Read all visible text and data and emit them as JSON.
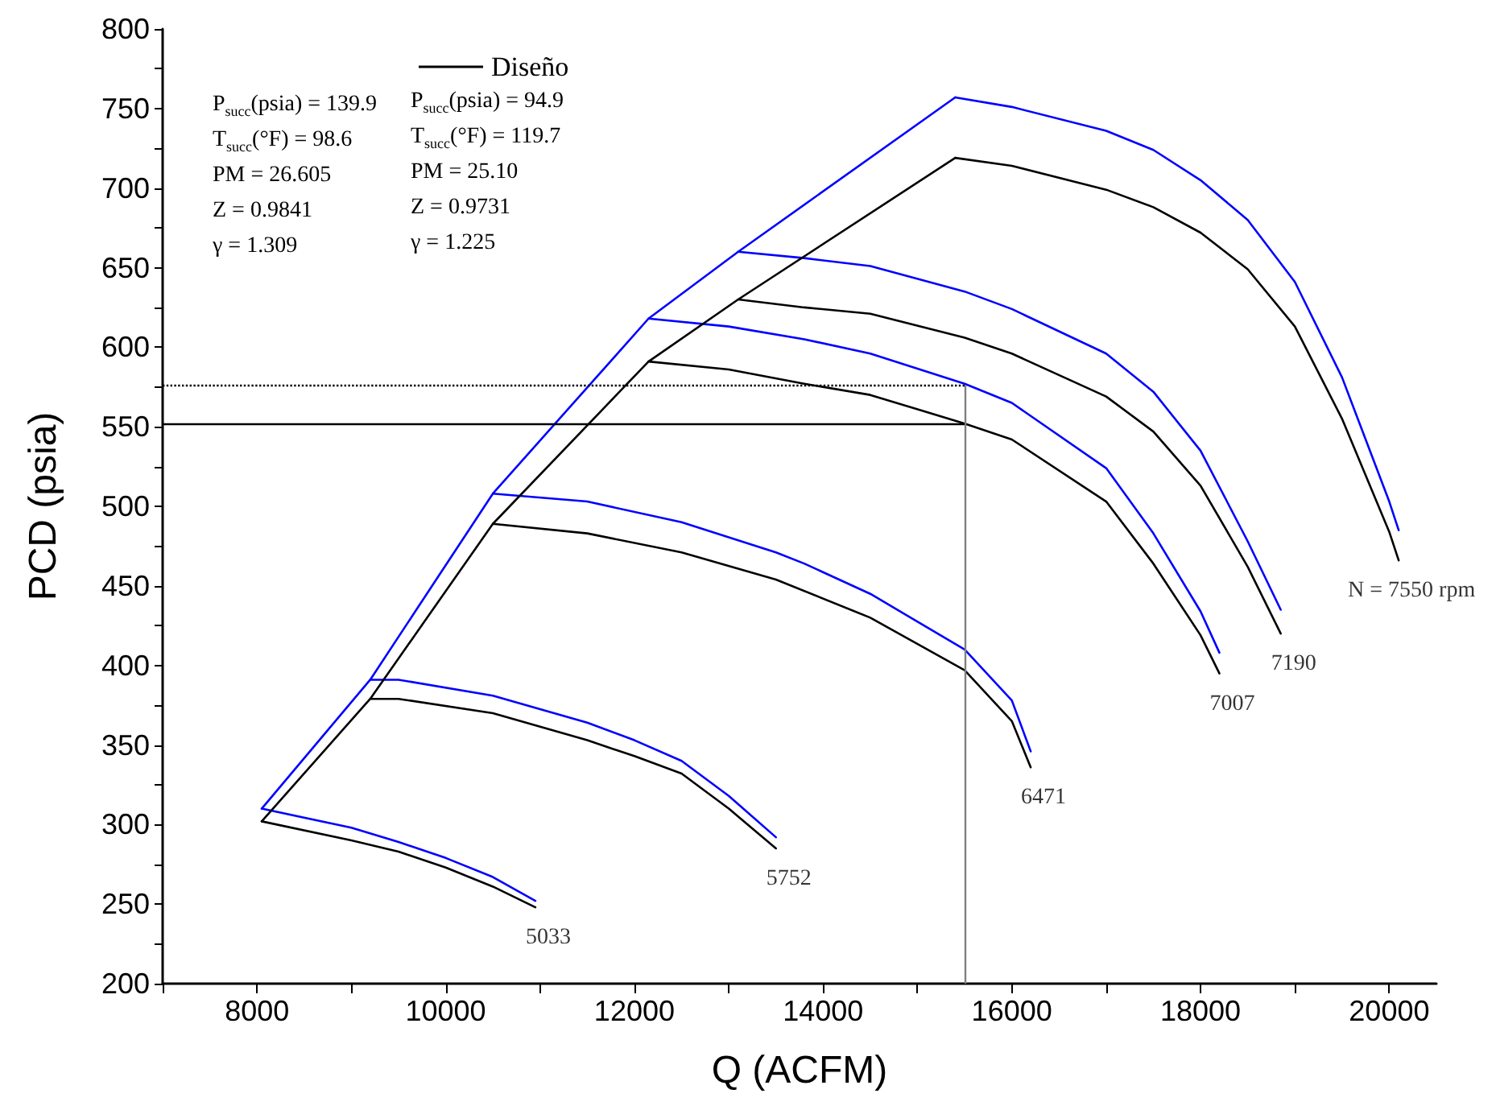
{
  "chart_data": {
    "type": "line",
    "xlabel": "Q (ACFM)",
    "ylabel": "PCD (psia)",
    "xlim": [
      7000,
      20500
    ],
    "xticks": [
      {
        "value": 7000,
        "label": null
      },
      8000,
      {
        "value": 9000,
        "label": null
      },
      10000,
      {
        "value": 11000,
        "label": null
      },
      12000,
      {
        "value": 13000,
        "label": null
      },
      14000,
      {
        "value": 15000,
        "label": null
      },
      16000,
      {
        "value": 17000,
        "label": null
      },
      18000,
      {
        "value": 19000,
        "label": null
      },
      20000
    ],
    "ylim": [
      200,
      800
    ],
    "yticks": [
      200,
      {
        "value": 225,
        "label": null
      },
      250,
      {
        "value": 275,
        "label": null
      },
      300,
      {
        "value": 325,
        "label": null
      },
      350,
      {
        "value": 375,
        "label": null
      },
      400,
      {
        "value": 425,
        "label": null
      },
      450,
      {
        "value": 475,
        "label": null
      },
      500,
      {
        "value": 525,
        "label": null
      },
      550,
      {
        "value": 575,
        "label": null
      },
      600,
      {
        "value": 625,
        "label": null
      },
      650,
      {
        "value": 675,
        "label": null
      },
      700,
      {
        "value": 725,
        "label": null
      },
      750,
      {
        "value": 775,
        "label": null
      },
      800
    ],
    "grid": false,
    "legend": "top left",
    "marker": "none",
    "line_style": "solid",
    "series": [
      {
        "color": "#0000ff",
        "x": [
          8050,
          9000,
          9500,
          10000,
          10500,
          10950
        ],
        "values": [
          310,
          298,
          289,
          279,
          267,
          252
        ]
      },
      {
        "color": "#0000ff",
        "x": [
          9200,
          9500,
          10500,
          11500,
          12000,
          12500,
          13000,
          13500
        ],
        "values": [
          391,
          391,
          381,
          364,
          353,
          340,
          318,
          292
        ]
      },
      {
        "color": "#0000ff",
        "x": [
          10500,
          11500,
          12500,
          13500,
          13800,
          14500,
          15500,
          16000,
          16200
        ],
        "values": [
          508,
          503,
          490,
          471,
          464,
          445,
          410,
          378,
          346
        ]
      },
      {
        "color": "#0000ff",
        "x": [
          12150,
          13000,
          13800,
          14500,
          15500,
          16000,
          17000,
          17500,
          18000,
          18200
        ],
        "values": [
          618,
          613,
          605,
          596,
          577,
          565,
          524,
          483,
          434,
          408
        ]
      },
      {
        "color": "#0000ff",
        "x": [
          13100,
          13800,
          14500,
          15500,
          16000,
          17000,
          17500,
          18000,
          18500,
          18850
        ],
        "values": [
          660,
          656,
          651,
          635,
          624,
          596,
          572,
          535,
          478,
          435
        ]
      },
      {
        "color": "#0000ff",
        "x": [
          15400,
          16000,
          17000,
          17500,
          18000,
          18500,
          19000,
          19500,
          20000,
          20100
        ],
        "values": [
          757,
          751,
          736,
          724,
          705,
          680,
          641,
          581,
          503,
          485
        ]
      },
      {
        "color": "#0000ff",
        "x": [
          8050,
          9200,
          10500,
          12150,
          13100,
          15400
        ],
        "values": [
          310,
          391,
          508,
          618,
          660,
          757
        ]
      },
      {
        "name": "Diseño",
        "color": "#000000",
        "x": [
          8050,
          9000,
          9500,
          10000,
          10500,
          10950
        ],
        "values": [
          302,
          290,
          283,
          273,
          261,
          248
        ]
      },
      {
        "color": "#000000",
        "x": [
          9200,
          9500,
          10500,
          11500,
          12000,
          12500,
          13000,
          13500
        ],
        "values": [
          379,
          379,
          370,
          353,
          343,
          332,
          310,
          285
        ]
      },
      {
        "color": "#000000",
        "x": [
          10500,
          11500,
          12500,
          13500,
          14500,
          15500,
          16000,
          16200
        ],
        "values": [
          489,
          483,
          471,
          454,
          430,
          397,
          365,
          336
        ]
      },
      {
        "color": "#000000",
        "x": [
          12150,
          13000,
          13800,
          14500,
          15500,
          16000,
          17000,
          17500,
          18000,
          18200
        ],
        "values": [
          591,
          586,
          577,
          570,
          552,
          542,
          503,
          464,
          419,
          395
        ]
      },
      {
        "color": "#000000",
        "x": [
          13100,
          13800,
          14500,
          15500,
          16000,
          17000,
          17500,
          18000,
          18500,
          18850
        ],
        "values": [
          630,
          625,
          621,
          606,
          596,
          569,
          547,
          513,
          462,
          420
        ]
      },
      {
        "color": "#000000",
        "x": [
          15400,
          16000,
          17000,
          17500,
          18000,
          18500,
          19000,
          19500,
          20000,
          20100
        ],
        "values": [
          719,
          714,
          699,
          688,
          672,
          649,
          613,
          555,
          484,
          466
        ]
      },
      {
        "color": "#000000",
        "x": [
          8050,
          9200,
          10500,
          12150,
          13100,
          15400
        ],
        "values": [
          302,
          379,
          489,
          591,
          630,
          719
        ]
      }
    ],
    "ref_lines": [
      {
        "axis": "x",
        "value": 15500,
        "color": "#808080",
        "line_style": "solid"
      },
      {
        "axis": "y",
        "value": 552,
        "color": "#000000",
        "line_style": "solid"
      },
      {
        "axis": "y",
        "value": 576,
        "color": "#000000",
        "line_style": "dotted"
      }
    ],
    "annotations": [
      "P$_{succ}$(psia) = 139.9",
      "T$_{succ}$(°F) = 98.6",
      "PM = 26.605",
      "Z = 0.9841",
      "γ = 1.309",
      "P$_{succ}$(psia) = 94.9",
      "T$_{succ}$(°F) = 119.7",
      "PM = 25.10",
      "Z = 0.9731",
      "γ = 1.225",
      {
        "text": "5033",
        "x": 10950,
        "y": 248
      },
      {
        "text": "5752",
        "x": 13500,
        "y": 285
      },
      {
        "text": "6471",
        "x": 16200,
        "y": 336
      },
      {
        "text": "7007",
        "x": 18200,
        "y": 395
      },
      {
        "text": "7190",
        "x": 18850,
        "y": 420
      },
      {
        "text": "N = 7550 rpm",
        "x": 20100,
        "y": 466
      }
    ]
  }
}
